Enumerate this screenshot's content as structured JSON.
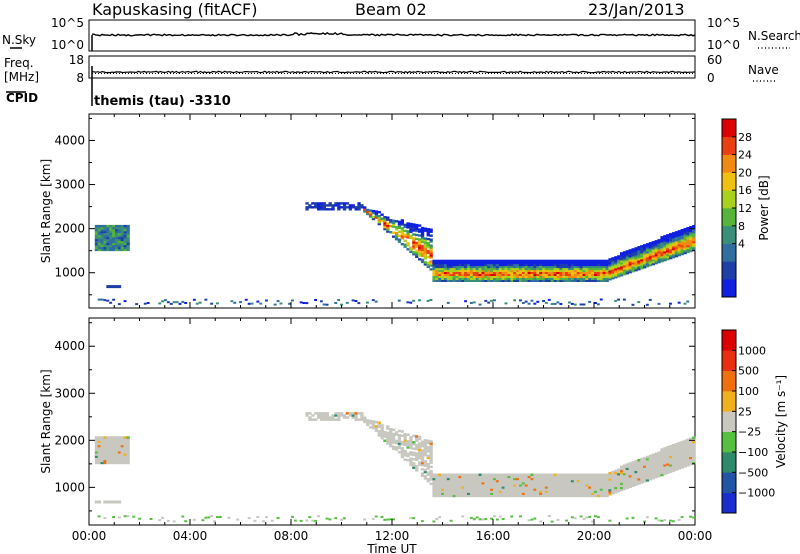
{
  "header": {
    "station": "Kapuskasing (fitACF)",
    "beam": "Beam 02",
    "date": "23/Jan/2013"
  },
  "strips": {
    "nsky_label": "N.Sky",
    "nsearch_label": "N.Search",
    "freq_label_1": "Freq.",
    "freq_label_2": "[MHz]",
    "nave_label": "Nave",
    "cpid_label": "CPID",
    "cpid_text": "themis (tau) -3310",
    "nsky_left_ticks": [
      "10^5",
      "10^0"
    ],
    "nsky_right_ticks": [
      "10^5",
      "10^0"
    ],
    "freq_ticks": [
      "18",
      "8"
    ],
    "nave_ticks": [
      "60",
      "0"
    ]
  },
  "chart_data": [
    {
      "type": "heatmap",
      "name": "Power",
      "ylabel": "Slant Range [km]",
      "ylim": [
        200,
        4600
      ],
      "yticks": [
        "4000",
        "3000",
        "2000",
        "1000"
      ],
      "colorbar_label": "Power [dB]",
      "colorbar_ticks": [
        "28",
        "24",
        "20",
        "16",
        "12",
        "8",
        "4"
      ],
      "colors": [
        "#1020e0",
        "#1e3fa8",
        "#2f6ea0",
        "#3a8f78",
        "#55b43a",
        "#a8d21e",
        "#f0c010",
        "#f08a10",
        "#e84010",
        "#dd0000"
      ]
    },
    {
      "type": "heatmap",
      "name": "Velocity",
      "ylabel": "Slant Range [km]",
      "ylim": [
        200,
        4600
      ],
      "yticks": [
        "4000",
        "3000",
        "2000",
        "1000"
      ],
      "colorbar_label": "Velocity [m s⁻¹]",
      "colorbar_ticks": [
        "1000",
        "500",
        "100",
        "25",
        "−25",
        "−100",
        "−500",
        "−1000"
      ],
      "colors": [
        "#1a2ed0",
        "#2255a8",
        "#2e8a6a",
        "#55c040",
        "#c8c8c0",
        "#f0b020",
        "#f07010",
        "#e83010",
        "#dd0000"
      ],
      "ground_scatter_color": "#c8c8c0"
    }
  ],
  "x_axis": {
    "label": "Time UT",
    "ticks": [
      "00:00",
      "04:00",
      "08:00",
      "12:00",
      "16:00",
      "20:00",
      "00:00"
    ]
  }
}
